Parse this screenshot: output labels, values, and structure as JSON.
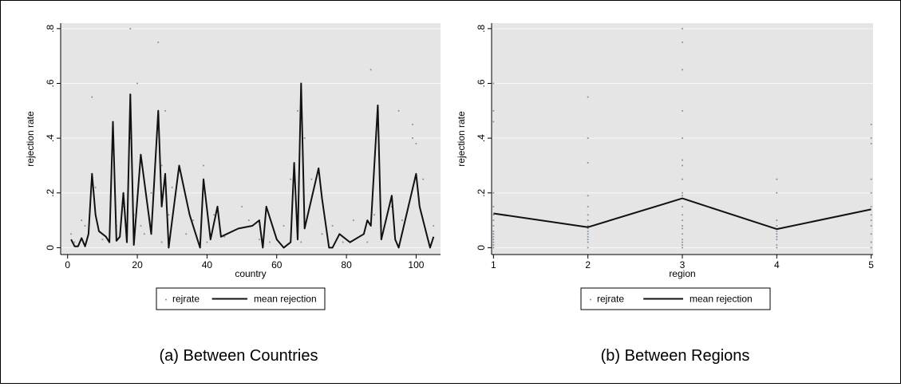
{
  "colors": {
    "plot_bg": "#e5e5e5",
    "grid": "#f7f7f7",
    "mean_line": "#111111",
    "dots": "#7f8ea5"
  },
  "chart_data": [
    {
      "type": "line",
      "caption": "(a) Between Countries",
      "xlabel": "country",
      "ylabel": "rejection rate",
      "xlim": [
        -2,
        107
      ],
      "ylim": [
        -0.025,
        0.82
      ],
      "x_ticks": [
        0,
        20,
        40,
        60,
        80,
        100
      ],
      "x_tick_labels": [
        "0",
        "20",
        "40",
        "60",
        "80",
        "100"
      ],
      "y_ticks": [
        0,
        0.2,
        0.4,
        0.6,
        0.8
      ],
      "y_tick_labels": [
        "0",
        ".2",
        ".4",
        ".6",
        ".8"
      ],
      "grid": true,
      "legend": {
        "position": "bottom",
        "entries": [
          "rejrate",
          "mean rejection"
        ]
      },
      "series": [
        {
          "name": "mean rejection",
          "style": "line",
          "x": [
            1,
            2,
            3,
            4,
            5,
            6,
            7,
            8,
            9,
            11,
            12,
            13,
            14,
            15,
            16,
            17,
            18,
            19,
            21,
            24,
            26,
            27,
            28,
            29,
            30,
            32,
            35,
            38,
            39,
            41,
            43,
            44,
            49,
            53,
            55,
            56,
            57,
            60,
            62,
            64,
            65,
            66,
            67,
            68,
            72,
            73,
            75,
            76,
            78,
            81,
            85,
            86,
            87,
            89,
            90,
            93,
            94,
            95,
            100,
            101,
            103,
            104,
            105
          ],
          "y": [
            0.03,
            0.005,
            0.005,
            0.035,
            0.005,
            0.05,
            0.27,
            0.12,
            0.06,
            0.04,
            0.02,
            0.46,
            0.025,
            0.04,
            0.2,
            0.02,
            0.56,
            0.01,
            0.34,
            0.05,
            0.5,
            0.15,
            0.27,
            0.0,
            0.1,
            0.3,
            0.12,
            0.0,
            0.25,
            0.03,
            0.15,
            0.04,
            0.07,
            0.08,
            0.1,
            0.0,
            0.15,
            0.03,
            0.0,
            0.02,
            0.31,
            0.03,
            0.6,
            0.07,
            0.29,
            0.18,
            0.0,
            0.0,
            0.05,
            0.02,
            0.05,
            0.1,
            0.08,
            0.52,
            0.03,
            0.19,
            0.03,
            0.0,
            0.27,
            0.15,
            0.05,
            0.0,
            0.04
          ]
        },
        {
          "name": "rejrate",
          "style": "dots",
          "x": [
            1,
            2,
            4,
            5,
            7,
            8,
            10,
            12,
            13,
            14,
            16,
            18,
            18,
            19,
            20,
            21,
            22,
            24,
            26,
            27,
            27,
            28,
            29,
            30,
            32,
            34,
            36,
            39,
            40,
            42,
            45,
            50,
            52,
            55,
            58,
            62,
            64,
            66,
            66,
            67,
            68,
            70,
            73,
            76,
            79,
            82,
            86,
            87,
            88,
            90,
            93,
            95,
            96,
            99,
            99,
            100,
            102,
            105
          ],
          "y": [
            0.05,
            0.02,
            0.1,
            0.08,
            0.55,
            0.22,
            0.03,
            0.02,
            0.45,
            0.08,
            0.15,
            0.8,
            0.4,
            0.12,
            0.6,
            0.08,
            0.05,
            0.2,
            0.75,
            0.02,
            0.3,
            0.5,
            0.12,
            0.22,
            0.28,
            0.05,
            0.1,
            0.3,
            0.02,
            0.12,
            0.04,
            0.15,
            0.1,
            0.03,
            0.02,
            0.08,
            0.25,
            0.5,
            0.1,
            0.02,
            0.4,
            0.25,
            0.05,
            0.08,
            0.02,
            0.1,
            0.02,
            0.65,
            0.12,
            0.08,
            0.15,
            0.5,
            0.1,
            0.45,
            0.4,
            0.38,
            0.25,
            0.08
          ]
        }
      ]
    },
    {
      "type": "line",
      "caption": "(b) Between Regions",
      "xlabel": "region",
      "ylabel": "rejection rate",
      "xlim": [
        0.98,
        5.02
      ],
      "ylim": [
        -0.025,
        0.82
      ],
      "x_ticks": [
        1,
        2,
        3,
        4,
        5
      ],
      "x_tick_labels": [
        "1",
        "2",
        "3",
        "4",
        "5"
      ],
      "y_ticks": [
        0,
        0.2,
        0.4,
        0.6,
        0.8
      ],
      "y_tick_labels": [
        "0",
        ".2",
        ".4",
        ".6",
        ".8"
      ],
      "grid": true,
      "legend": {
        "position": "bottom",
        "entries": [
          "rejrate",
          "mean rejection"
        ]
      },
      "series": [
        {
          "name": "mean rejection",
          "style": "line",
          "x": [
            1,
            2,
            3,
            4,
            5
          ],
          "y": [
            0.125,
            0.075,
            0.18,
            0.068,
            0.14
          ]
        },
        {
          "name": "rejrate",
          "style": "dots",
          "x": [
            1,
            1,
            1,
            1,
            1,
            1,
            1,
            1,
            1,
            1,
            1,
            1,
            1,
            1,
            1,
            2,
            2,
            2,
            2,
            2,
            2,
            2,
            2,
            2,
            2,
            2,
            2,
            2,
            2,
            2,
            3,
            3,
            3,
            3,
            3,
            3,
            3,
            3,
            3,
            3,
            3,
            3,
            3,
            3,
            3,
            3,
            3,
            3,
            3,
            3,
            4,
            4,
            4,
            4,
            4,
            4,
            4,
            4,
            4,
            4,
            5,
            5,
            5,
            5,
            5,
            5,
            5,
            5,
            5,
            5,
            5,
            5
          ],
          "y": [
            0.6,
            0.5,
            0.46,
            0.2,
            0.15,
            0.12,
            0.1,
            0.08,
            0.06,
            0.05,
            0.04,
            0.03,
            0.02,
            0.01,
            0.0,
            0.55,
            0.4,
            0.31,
            0.19,
            0.15,
            0.12,
            0.1,
            0.08,
            0.07,
            0.06,
            0.05,
            0.04,
            0.03,
            0.02,
            0.0,
            0.8,
            0.75,
            0.65,
            0.5,
            0.4,
            0.32,
            0.3,
            0.25,
            0.2,
            0.19,
            0.15,
            0.12,
            0.1,
            0.08,
            0.07,
            0.05,
            0.03,
            0.02,
            0.01,
            0.0,
            0.25,
            0.2,
            0.1,
            0.08,
            0.06,
            0.05,
            0.04,
            0.03,
            0.01,
            0.0,
            0.45,
            0.4,
            0.38,
            0.25,
            0.2,
            0.15,
            0.12,
            0.1,
            0.08,
            0.05,
            0.02,
            0.0
          ]
        }
      ]
    }
  ]
}
